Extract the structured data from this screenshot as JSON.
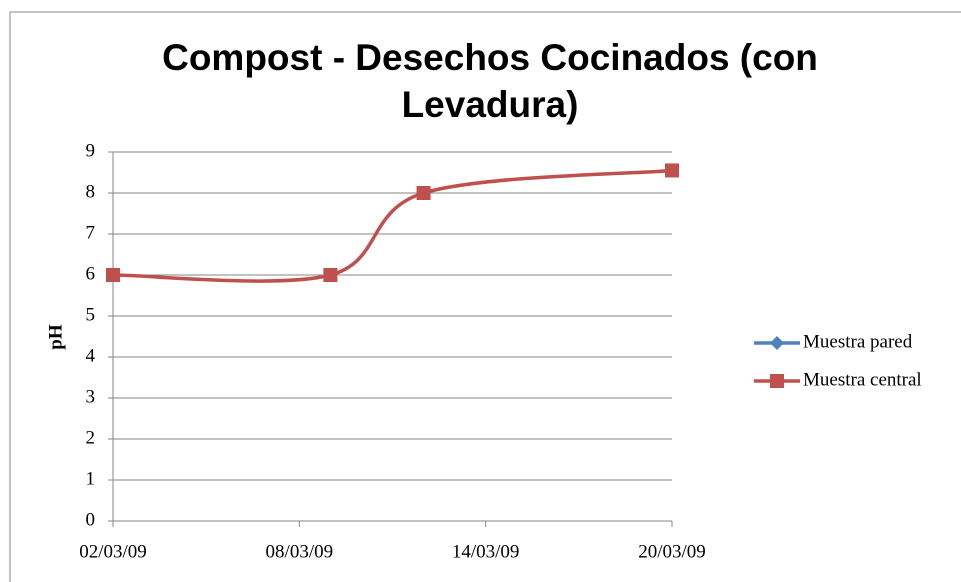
{
  "chart_data": {
    "type": "line",
    "title": "Compost - Desechos Cocinados (con Levadura)",
    "ylabel": "pH",
    "x": [
      "02/03/09",
      "09/03/09",
      "12/03/09",
      "20/03/09"
    ],
    "series": [
      {
        "name": "Muestra pared",
        "color": "#4f81bd",
        "marker": "diamond",
        "values": [
          null,
          null,
          null,
          null
        ]
      },
      {
        "name": "Muestra central",
        "color": "#c0504d",
        "marker": "square",
        "values": [
          6,
          6,
          8,
          8.55
        ]
      }
    ],
    "xlim": [
      "02/03/09",
      "20/03/09"
    ],
    "xticks": [
      "02/03/09",
      "08/03/09",
      "14/03/09",
      "20/03/09"
    ],
    "ylim": [
      0,
      9
    ],
    "yticks": [
      0,
      1,
      2,
      3,
      4,
      5,
      6,
      7,
      8,
      9
    ],
    "grid": true,
    "smooth": true,
    "legend": "right"
  }
}
